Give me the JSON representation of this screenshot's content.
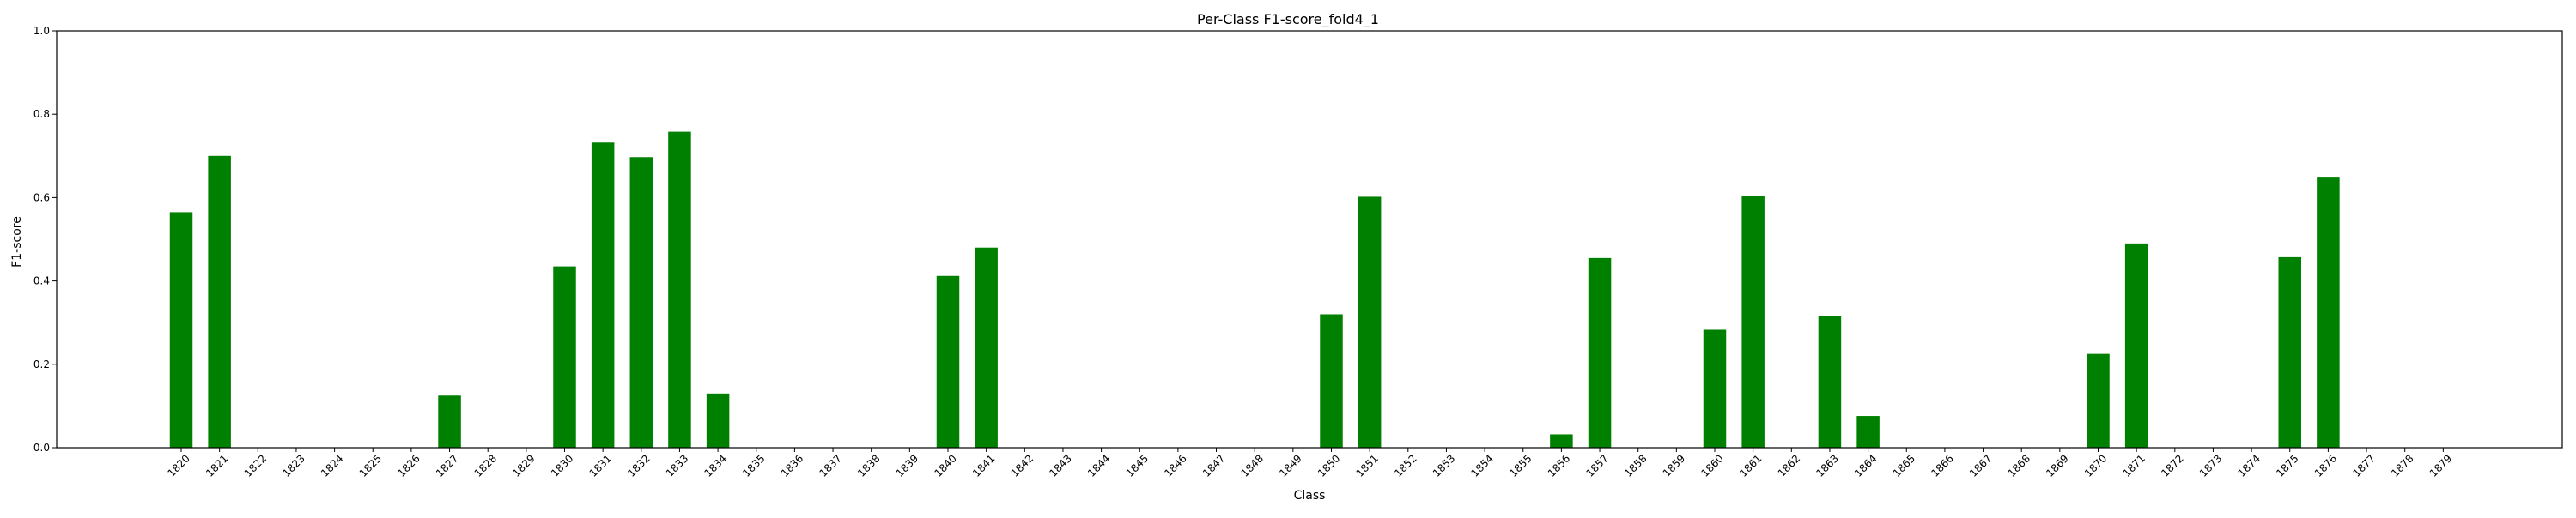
{
  "chart_data": {
    "type": "bar",
    "title": "Per-Class F1-score_fold4_1",
    "xlabel": "Class",
    "ylabel": "F1-score",
    "ylim": [
      0,
      1.0
    ],
    "yticks": [
      "0.0",
      "0.2",
      "0.4",
      "0.6",
      "0.8",
      "1.0"
    ],
    "grid": false,
    "bar_color": "#008000",
    "categories": [
      "1820",
      "1821",
      "1822",
      "1823",
      "1824",
      "1825",
      "1826",
      "1827",
      "1828",
      "1829",
      "1830",
      "1831",
      "1832",
      "1833",
      "1834",
      "1835",
      "1836",
      "1837",
      "1838",
      "1839",
      "1840",
      "1841",
      "1842",
      "1843",
      "1844",
      "1845",
      "1846",
      "1847",
      "1848",
      "1849",
      "1850",
      "1851",
      "1852",
      "1853",
      "1854",
      "1855",
      "1856",
      "1857",
      "1858",
      "1859",
      "1860",
      "1861",
      "1862",
      "1863",
      "1864",
      "1865",
      "1866",
      "1867",
      "1868",
      "1869",
      "1870",
      "1871",
      "1872",
      "1873",
      "1874",
      "1875",
      "1876",
      "1877",
      "1878",
      "1879"
    ],
    "values": [
      0.565,
      0.7,
      0,
      0,
      0,
      0,
      0,
      0.125,
      0,
      0,
      0.435,
      0.732,
      0.697,
      0.758,
      0.13,
      0,
      0,
      0,
      0,
      0,
      0.412,
      0.48,
      0,
      0,
      0,
      0,
      0,
      0,
      0,
      0,
      0.32,
      0.602,
      0,
      0,
      0,
      0,
      0.032,
      0.455,
      0,
      0,
      0.283,
      0.605,
      0,
      0.316,
      0.076,
      0,
      0,
      0,
      0,
      0,
      0.225,
      0.49,
      0,
      0,
      0,
      0.457,
      0.65,
      0,
      0,
      0
    ]
  }
}
